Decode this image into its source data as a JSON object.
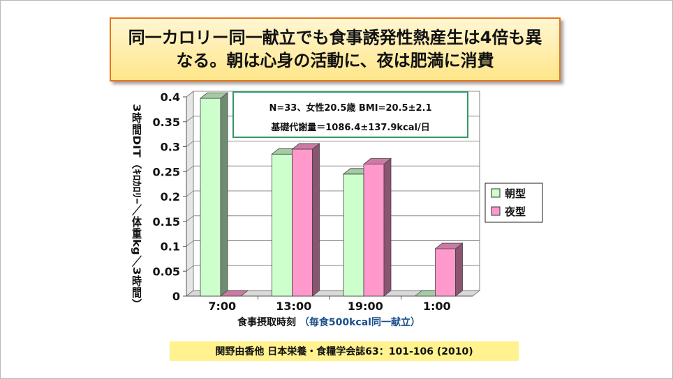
{
  "title": {
    "line1": "同一カロリー同一献立でも食事誘発性熱産生は4倍も異",
    "line2": "なる。朝は心身の活動に、夜は肥満に消費"
  },
  "citation": "関野由香他  日本栄養・食糧学会誌63：101-106  (2010)",
  "info_box": {
    "line1": "N=33、女性20.5歳  BMI=20.5±2.1",
    "line2": "基礎代謝量＝1086.4±137.9kcal/日"
  },
  "colors": {
    "morning": "#ccffcc",
    "night": "#ff99cc",
    "info_border": "#339966",
    "xlabel_note": "#1a4f8a"
  },
  "chart_data": {
    "type": "bar",
    "categories": [
      "7:00",
      "13:00",
      "19:00",
      "1:00"
    ],
    "series": [
      {
        "name": "朝型",
        "values": [
          0.397,
          0.285,
          0.245,
          0.0
        ]
      },
      {
        "name": "夜型",
        "values": [
          0.0,
          0.295,
          0.265,
          0.095
        ]
      }
    ],
    "ylabel": "3時間DIT（ｷﾛｶﾛﾘｰ／体重kg／3時間）",
    "xlabel": "食事摂取時刻",
    "xlabel_note": "（毎食500kcal同一献立）",
    "ylim": [
      0,
      0.4
    ],
    "yticks": [
      "0",
      "0.05",
      "0.1",
      "0.15",
      "0.2",
      "0.25",
      "0.3",
      "0.35",
      "0.4"
    ],
    "grid": true,
    "legend_position": "right"
  }
}
